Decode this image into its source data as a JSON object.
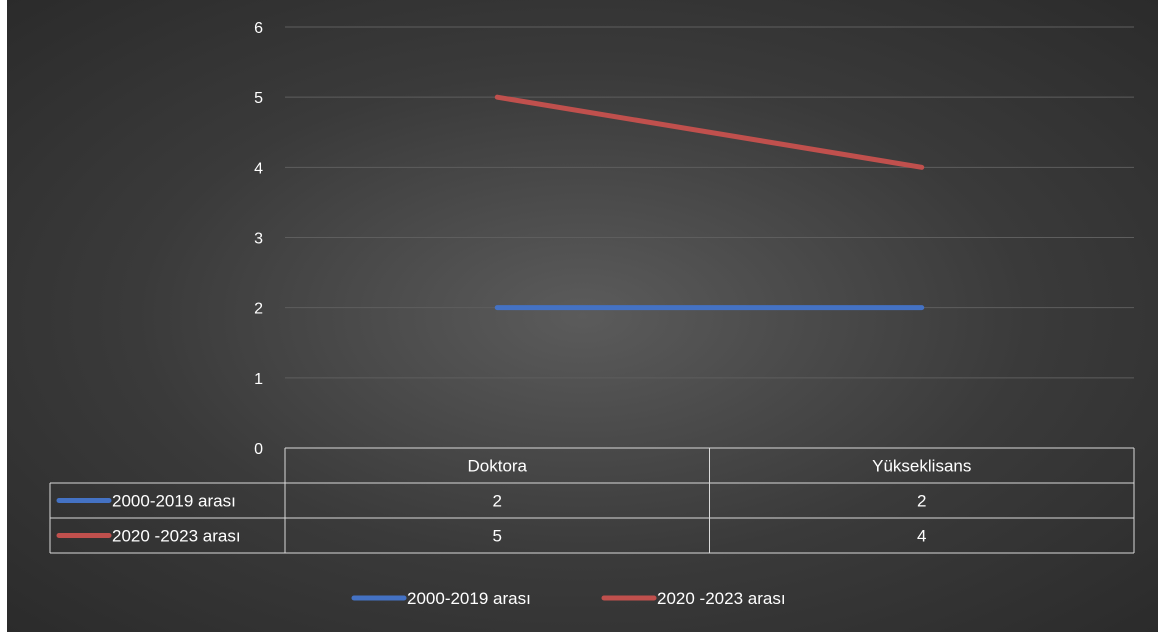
{
  "chart_data": {
    "type": "line",
    "categories": [
      "Doktora",
      "Yükseklisans"
    ],
    "series": [
      {
        "name": "2000-2019 arası",
        "values": [
          2,
          2
        ],
        "color": "#4472c4"
      },
      {
        "name": "2020 -2023 arası",
        "values": [
          5,
          4
        ],
        "color": "#c0504d"
      }
    ],
    "ylim": [
      0,
      6
    ],
    "yticks": [
      0,
      1,
      2,
      3,
      4,
      5,
      6
    ],
    "grid": true,
    "legend": "bottom",
    "data_table": true,
    "colors": {
      "background": "#404040",
      "gridline": "#5e5e5e",
      "table_border": "#d9d9d9",
      "text": "#ffffff"
    }
  }
}
